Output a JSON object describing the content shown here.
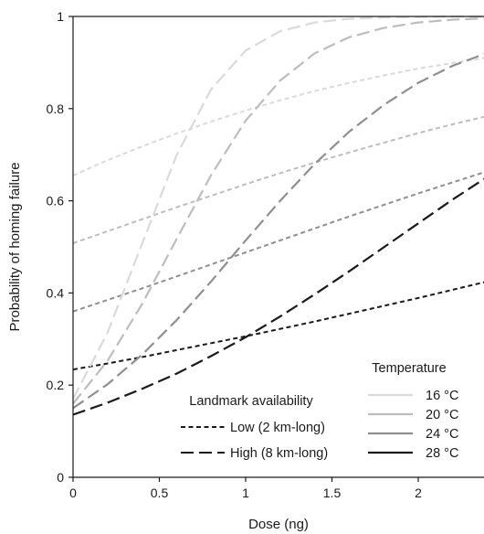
{
  "chart_data": {
    "type": "line",
    "title": "",
    "xlabel": "Dose (ng)",
    "ylabel": "Probability of homing failure",
    "xlim": [
      0,
      2.4
    ],
    "ylim": [
      0,
      1
    ],
    "xticks": [
      0,
      0.5,
      1,
      1.5,
      2
    ],
    "xtick_labels": [
      "0",
      "0.5",
      "1",
      "1.5",
      "2"
    ],
    "yticks": [
      0,
      0.2,
      0.4,
      0.6,
      0.8,
      1
    ],
    "ytick_labels": [
      "0",
      "0.2",
      "0.4",
      "0.6",
      "0.8",
      "1"
    ],
    "grid": false,
    "temperature_legend": {
      "title": "Temperature",
      "placement": "bottom-right",
      "entries": [
        {
          "label": "16 °C",
          "color": "#dadada"
        },
        {
          "label": "20 °C",
          "color": "#bdbdbd"
        },
        {
          "label": "24 °C",
          "color": "#8f8f8f"
        },
        {
          "label": "28 °C",
          "color": "#1a1a1a"
        }
      ]
    },
    "landmark_legend": {
      "title": "Landmark availability",
      "placement": "bottom-center",
      "entries": [
        {
          "label": "Low (2 km-long)",
          "dash": "short"
        },
        {
          "label": "High (8 km-long)",
          "dash": "long"
        }
      ]
    },
    "x": [
      0,
      0.2,
      0.4,
      0.6,
      0.8,
      1.0,
      1.2,
      1.4,
      1.6,
      1.8,
      2.0,
      2.2,
      2.4
    ],
    "series": [
      {
        "temperature": "16 °C",
        "landmark": "Low (2 km-long)",
        "color": "#dadada",
        "dash": "short",
        "values": [
          0.655,
          0.688,
          0.718,
          0.746,
          0.772,
          0.796,
          0.818,
          0.838,
          0.856,
          0.872,
          0.887,
          0.899,
          0.911
        ]
      },
      {
        "temperature": "20 °C",
        "landmark": "Low (2 km-long)",
        "color": "#bdbdbd",
        "dash": "short",
        "values": [
          0.508,
          0.534,
          0.56,
          0.586,
          0.611,
          0.636,
          0.66,
          0.683,
          0.705,
          0.726,
          0.747,
          0.766,
          0.784
        ]
      },
      {
        "temperature": "24 °C",
        "landmark": "Low (2 km-long)",
        "color": "#8f8f8f",
        "dash": "short",
        "values": [
          0.36,
          0.385,
          0.41,
          0.436,
          0.462,
          0.488,
          0.514,
          0.54,
          0.566,
          0.591,
          0.616,
          0.64,
          0.664
        ]
      },
      {
        "temperature": "28 °C",
        "landmark": "Low (2 km-long)",
        "color": "#1a1a1a",
        "dash": "short",
        "values": [
          0.234,
          0.247,
          0.261,
          0.276,
          0.291,
          0.306,
          0.322,
          0.338,
          0.355,
          0.372,
          0.389,
          0.407,
          0.425
        ]
      },
      {
        "temperature": "16 °C",
        "landmark": "High (8 km-long)",
        "color": "#dadada",
        "dash": "long",
        "values": [
          0.17,
          0.314,
          0.507,
          0.699,
          0.842,
          0.926,
          0.968,
          0.987,
          0.995,
          0.998,
          0.999,
          1.0,
          1.0
        ]
      },
      {
        "temperature": "20 °C",
        "landmark": "High (8 km-long)",
        "color": "#bdbdbd",
        "dash": "long",
        "values": [
          0.16,
          0.253,
          0.376,
          0.517,
          0.656,
          0.774,
          0.861,
          0.92,
          0.955,
          0.975,
          0.987,
          0.993,
          0.996
        ]
      },
      {
        "temperature": "24 °C",
        "landmark": "High (8 km-long)",
        "color": "#8f8f8f",
        "dash": "long",
        "values": [
          0.15,
          0.202,
          0.266,
          0.341,
          0.425,
          0.514,
          0.6,
          0.68,
          0.75,
          0.808,
          0.856,
          0.893,
          0.921
        ]
      },
      {
        "temperature": "28 °C",
        "landmark": "High (8 km-long)",
        "color": "#1a1a1a",
        "dash": "long",
        "values": [
          0.136,
          0.162,
          0.192,
          0.225,
          0.263,
          0.304,
          0.349,
          0.397,
          0.447,
          0.499,
          0.551,
          0.603,
          0.652
        ]
      }
    ]
  }
}
